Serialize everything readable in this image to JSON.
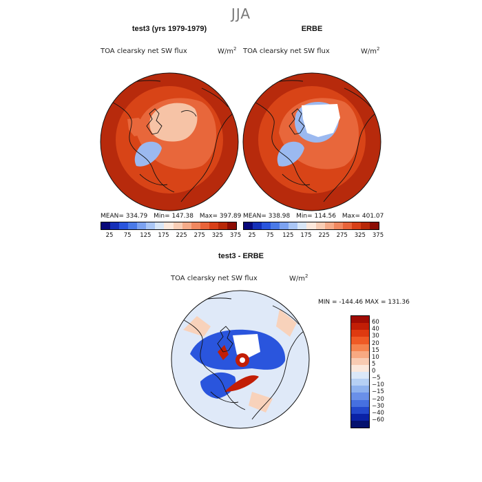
{
  "season": "JJA",
  "panels": [
    {
      "title": "test3 (yrs 1979-1979)",
      "variable": "TOA clearsky net SW flux",
      "units_base": "W/m",
      "units_exp": "2",
      "stats": {
        "mean": "MEAN= 334.79",
        "min": "Min= 147.38",
        "max": "Max= 397.89"
      }
    },
    {
      "title": "ERBE",
      "variable": "TOA clearsky net SW flux",
      "units_base": "W/m",
      "units_exp": "2",
      "stats": {
        "mean": "MEAN= 338.98",
        "min": "Min= 114.56",
        "max": "Max= 401.07"
      }
    }
  ],
  "abs_colorbar": {
    "colors": [
      "#08087a",
      "#1530b8",
      "#2a55dd",
      "#4a7ae8",
      "#7ca2f0",
      "#aac6f5",
      "#d8e6f7",
      "#fce8dc",
      "#f8cdb5",
      "#f5ab89",
      "#f08860",
      "#e8643a",
      "#d84018",
      "#b82808",
      "#8c0c04"
    ],
    "ticks": [
      "25",
      "75",
      "125",
      "175",
      "225",
      "275",
      "325",
      "375"
    ]
  },
  "diff_panel": {
    "title": "test3 - ERBE",
    "variable": "TOA clearsky net SW flux",
    "units_base": "W/m",
    "units_exp": "2",
    "minmax": "MIN = -144.46  MAX = 131.36"
  },
  "diff_colorbar": {
    "colors": [
      "#a00c04",
      "#c21e06",
      "#de3a10",
      "#ef5a25",
      "#f5834e",
      "#f7a982",
      "#f8cbb2",
      "#fbe8dc",
      "#dbe8f8",
      "#b6d0f4",
      "#8fb2ee",
      "#6a90e8",
      "#4670e0",
      "#2348cc",
      "#0a22a6",
      "#05126e"
    ],
    "ticks": [
      "60",
      "40",
      "30",
      "20",
      "15",
      "10",
      "5",
      "0",
      "−5",
      "−10",
      "−15",
      "−20",
      "−30",
      "−40",
      "−60"
    ]
  },
  "map_colors": {
    "outer": "#b72a0c",
    "ring": "#d84417",
    "inner": "#e8673b",
    "pale": "#f6c3a6",
    "blue": "#9bb9f0",
    "white": "#ffffff",
    "diff_bg": "#dfe9f8",
    "diff_blue": "#2a55dd",
    "diff_red": "#c21e06",
    "diff_peach": "#f8d2bb"
  }
}
